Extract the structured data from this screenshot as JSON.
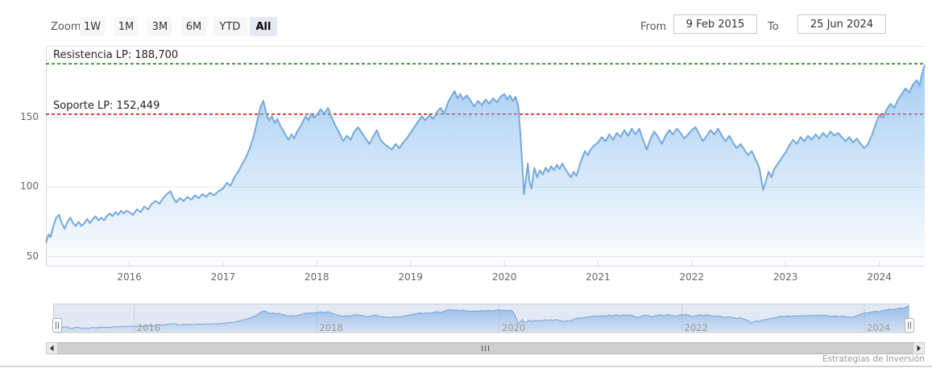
{
  "toolbar": {
    "zoom_label": "Zoom",
    "zoom_buttons": [
      {
        "label": "1W",
        "selected": false
      },
      {
        "label": "1M",
        "selected": false
      },
      {
        "label": "3M",
        "selected": false
      },
      {
        "label": "6M",
        "selected": false
      },
      {
        "label": "YTD",
        "selected": false
      },
      {
        "label": "All",
        "selected": true
      }
    ],
    "from_label": "From",
    "from_value": "9 Feb 2015",
    "to_label": "To",
    "to_value": "25 Jun 2024"
  },
  "credits": "Estrategias de Inversión",
  "chart_data": {
    "type": "area",
    "title": "",
    "xlabel": "",
    "ylabel": "",
    "x_min": 2015.11,
    "x_max": 2024.485,
    "x_ticks": [
      2016,
      2017,
      2018,
      2019,
      2020,
      2021,
      2022,
      2023,
      2024
    ],
    "y_ticks": [
      50,
      100,
      150
    ],
    "y_view_min": 43.4,
    "y_view_max": 201.6,
    "grid": true,
    "legend": "none",
    "plotlines": [
      {
        "label": "Resistencia LP: 188,700",
        "value": 188.7,
        "color": "#008000"
      },
      {
        "label": "Soporte LP: 152,449",
        "value": 152.449,
        "color": "#cc0000"
      }
    ],
    "navigator_ticks": [
      2016,
      2018,
      2020,
      2022,
      2024
    ],
    "colors": {
      "line": "#74a9dc",
      "fill_top": "rgba(124,181,236,0.75)",
      "fill_bottom": "rgba(124,181,236,0.02)",
      "grid": "#e6e6e6",
      "axis": "#ccd6eb",
      "mask": "rgba(102,133,194,0.18)"
    },
    "series": [
      {
        "name": "price",
        "points": [
          [
            2015.11,
            60
          ],
          [
            2015.14,
            66
          ],
          [
            2015.16,
            64
          ],
          [
            2015.19,
            72
          ],
          [
            2015.22,
            78
          ],
          [
            2015.25,
            80
          ],
          [
            2015.28,
            74
          ],
          [
            2015.31,
            70
          ],
          [
            2015.34,
            75
          ],
          [
            2015.37,
            78
          ],
          [
            2015.4,
            74
          ],
          [
            2015.43,
            72
          ],
          [
            2015.46,
            75
          ],
          [
            2015.49,
            72
          ],
          [
            2015.52,
            74
          ],
          [
            2015.55,
            77
          ],
          [
            2015.58,
            74
          ],
          [
            2015.61,
            77
          ],
          [
            2015.64,
            79
          ],
          [
            2015.67,
            76
          ],
          [
            2015.7,
            78
          ],
          [
            2015.73,
            76
          ],
          [
            2015.76,
            79
          ],
          [
            2015.79,
            81
          ],
          [
            2015.82,
            79
          ],
          [
            2015.85,
            82
          ],
          [
            2015.88,
            80
          ],
          [
            2015.91,
            83
          ],
          [
            2015.94,
            81
          ],
          [
            2015.97,
            83
          ],
          [
            2016.0,
            82
          ],
          [
            2016.04,
            80
          ],
          [
            2016.08,
            84
          ],
          [
            2016.12,
            82
          ],
          [
            2016.16,
            86
          ],
          [
            2016.2,
            84
          ],
          [
            2016.24,
            88
          ],
          [
            2016.28,
            90
          ],
          [
            2016.32,
            88
          ],
          [
            2016.36,
            92
          ],
          [
            2016.4,
            95
          ],
          [
            2016.44,
            97
          ],
          [
            2016.47,
            92
          ],
          [
            2016.5,
            89
          ],
          [
            2016.54,
            92
          ],
          [
            2016.58,
            90
          ],
          [
            2016.62,
            93
          ],
          [
            2016.66,
            91
          ],
          [
            2016.7,
            94
          ],
          [
            2016.74,
            92
          ],
          [
            2016.78,
            95
          ],
          [
            2016.82,
            93
          ],
          [
            2016.86,
            96
          ],
          [
            2016.9,
            94
          ],
          [
            2016.95,
            97
          ],
          [
            2017.0,
            99
          ],
          [
            2017.04,
            103
          ],
          [
            2017.08,
            101
          ],
          [
            2017.12,
            107
          ],
          [
            2017.16,
            111
          ],
          [
            2017.2,
            116
          ],
          [
            2017.24,
            121
          ],
          [
            2017.28,
            127
          ],
          [
            2017.32,
            135
          ],
          [
            2017.36,
            146
          ],
          [
            2017.4,
            158
          ],
          [
            2017.43,
            162
          ],
          [
            2017.46,
            153
          ],
          [
            2017.49,
            148
          ],
          [
            2017.52,
            151
          ],
          [
            2017.55,
            146
          ],
          [
            2017.58,
            149
          ],
          [
            2017.61,
            144
          ],
          [
            2017.64,
            141
          ],
          [
            2017.67,
            137
          ],
          [
            2017.7,
            134
          ],
          [
            2017.73,
            138
          ],
          [
            2017.76,
            135
          ],
          [
            2017.79,
            140
          ],
          [
            2017.82,
            143
          ],
          [
            2017.85,
            147
          ],
          [
            2017.88,
            151
          ],
          [
            2017.91,
            148
          ],
          [
            2017.94,
            153
          ],
          [
            2017.97,
            150
          ],
          [
            2018.0,
            152
          ],
          [
            2018.04,
            156
          ],
          [
            2018.08,
            153
          ],
          [
            2018.12,
            157
          ],
          [
            2018.16,
            150
          ],
          [
            2018.2,
            144
          ],
          [
            2018.24,
            139
          ],
          [
            2018.28,
            133
          ],
          [
            2018.32,
            137
          ],
          [
            2018.36,
            134
          ],
          [
            2018.4,
            140
          ],
          [
            2018.44,
            143
          ],
          [
            2018.48,
            139
          ],
          [
            2018.52,
            135
          ],
          [
            2018.56,
            131
          ],
          [
            2018.6,
            136
          ],
          [
            2018.64,
            141
          ],
          [
            2018.68,
            134
          ],
          [
            2018.72,
            131
          ],
          [
            2018.76,
            129
          ],
          [
            2018.8,
            127
          ],
          [
            2018.84,
            131
          ],
          [
            2018.88,
            128
          ],
          [
            2018.92,
            132
          ],
          [
            2018.96,
            135
          ],
          [
            2019.0,
            139
          ],
          [
            2019.04,
            143
          ],
          [
            2019.08,
            147
          ],
          [
            2019.12,
            151
          ],
          [
            2019.16,
            148
          ],
          [
            2019.2,
            152
          ],
          [
            2019.24,
            149
          ],
          [
            2019.28,
            154
          ],
          [
            2019.32,
            157
          ],
          [
            2019.36,
            153
          ],
          [
            2019.4,
            161
          ],
          [
            2019.44,
            166
          ],
          [
            2019.47,
            169
          ],
          [
            2019.5,
            164
          ],
          [
            2019.53,
            167
          ],
          [
            2019.56,
            163
          ],
          [
            2019.6,
            166
          ],
          [
            2019.64,
            162
          ],
          [
            2019.68,
            158
          ],
          [
            2019.72,
            162
          ],
          [
            2019.76,
            159
          ],
          [
            2019.8,
            163
          ],
          [
            2019.84,
            160
          ],
          [
            2019.88,
            164
          ],
          [
            2019.92,
            161
          ],
          [
            2019.96,
            165
          ],
          [
            2020.0,
            167
          ],
          [
            2020.03,
            163
          ],
          [
            2020.06,
            166
          ],
          [
            2020.09,
            162
          ],
          [
            2020.12,
            165
          ],
          [
            2020.15,
            158
          ],
          [
            2020.17,
            140
          ],
          [
            2020.19,
            118
          ],
          [
            2020.21,
            95
          ],
          [
            2020.23,
            105
          ],
          [
            2020.25,
            117
          ],
          [
            2020.27,
            103
          ],
          [
            2020.29,
            99
          ],
          [
            2020.32,
            114
          ],
          [
            2020.35,
            107
          ],
          [
            2020.38,
            112
          ],
          [
            2020.41,
            109
          ],
          [
            2020.44,
            114
          ],
          [
            2020.47,
            111
          ],
          [
            2020.5,
            115
          ],
          [
            2020.53,
            112
          ],
          [
            2020.56,
            116
          ],
          [
            2020.59,
            113
          ],
          [
            2020.62,
            117
          ],
          [
            2020.65,
            113
          ],
          [
            2020.68,
            110
          ],
          [
            2020.71,
            107
          ],
          [
            2020.74,
            111
          ],
          [
            2020.77,
            108
          ],
          [
            2020.8,
            115
          ],
          [
            2020.83,
            121
          ],
          [
            2020.86,
            126
          ],
          [
            2020.89,
            123
          ],
          [
            2020.92,
            127
          ],
          [
            2020.96,
            130
          ],
          [
            2021.0,
            132
          ],
          [
            2021.04,
            136
          ],
          [
            2021.08,
            133
          ],
          [
            2021.12,
            138
          ],
          [
            2021.16,
            134
          ],
          [
            2021.2,
            139
          ],
          [
            2021.24,
            136
          ],
          [
            2021.28,
            141
          ],
          [
            2021.32,
            137
          ],
          [
            2021.36,
            142
          ],
          [
            2021.4,
            138
          ],
          [
            2021.44,
            142
          ],
          [
            2021.48,
            134
          ],
          [
            2021.52,
            127
          ],
          [
            2021.56,
            135
          ],
          [
            2021.6,
            140
          ],
          [
            2021.64,
            136
          ],
          [
            2021.68,
            131
          ],
          [
            2021.72,
            137
          ],
          [
            2021.76,
            141
          ],
          [
            2021.8,
            138
          ],
          [
            2021.84,
            142
          ],
          [
            2021.88,
            139
          ],
          [
            2021.92,
            135
          ],
          [
            2021.96,
            138
          ],
          [
            2022.0,
            141
          ],
          [
            2022.04,
            143
          ],
          [
            2022.08,
            138
          ],
          [
            2022.12,
            133
          ],
          [
            2022.16,
            137
          ],
          [
            2022.2,
            141
          ],
          [
            2022.24,
            138
          ],
          [
            2022.28,
            142
          ],
          [
            2022.32,
            137
          ],
          [
            2022.36,
            133
          ],
          [
            2022.4,
            137
          ],
          [
            2022.44,
            132
          ],
          [
            2022.48,
            128
          ],
          [
            2022.52,
            131
          ],
          [
            2022.56,
            127
          ],
          [
            2022.6,
            123
          ],
          [
            2022.64,
            126
          ],
          [
            2022.68,
            120
          ],
          [
            2022.72,
            114
          ],
          [
            2022.76,
            98
          ],
          [
            2022.79,
            104
          ],
          [
            2022.82,
            111
          ],
          [
            2022.85,
            107
          ],
          [
            2022.88,
            113
          ],
          [
            2022.92,
            117
          ],
          [
            2022.96,
            121
          ],
          [
            2023.0,
            125
          ],
          [
            2023.04,
            130
          ],
          [
            2023.08,
            134
          ],
          [
            2023.12,
            131
          ],
          [
            2023.16,
            136
          ],
          [
            2023.2,
            133
          ],
          [
            2023.24,
            137
          ],
          [
            2023.28,
            134
          ],
          [
            2023.32,
            138
          ],
          [
            2023.36,
            135
          ],
          [
            2023.4,
            139
          ],
          [
            2023.44,
            136
          ],
          [
            2023.48,
            140
          ],
          [
            2023.52,
            137
          ],
          [
            2023.56,
            139
          ],
          [
            2023.6,
            136
          ],
          [
            2023.64,
            133
          ],
          [
            2023.68,
            136
          ],
          [
            2023.72,
            132
          ],
          [
            2023.76,
            135
          ],
          [
            2023.8,
            131
          ],
          [
            2023.84,
            128
          ],
          [
            2023.88,
            131
          ],
          [
            2023.92,
            137
          ],
          [
            2023.96,
            145
          ],
          [
            2024.0,
            152
          ],
          [
            2024.04,
            150
          ],
          [
            2024.08,
            156
          ],
          [
            2024.12,
            160
          ],
          [
            2024.16,
            157
          ],
          [
            2024.2,
            163
          ],
          [
            2024.24,
            167
          ],
          [
            2024.28,
            171
          ],
          [
            2024.32,
            168
          ],
          [
            2024.36,
            174
          ],
          [
            2024.4,
            177
          ],
          [
            2024.43,
            173
          ],
          [
            2024.45,
            180
          ],
          [
            2024.47,
            185
          ],
          [
            2024.485,
            188
          ]
        ]
      }
    ]
  }
}
